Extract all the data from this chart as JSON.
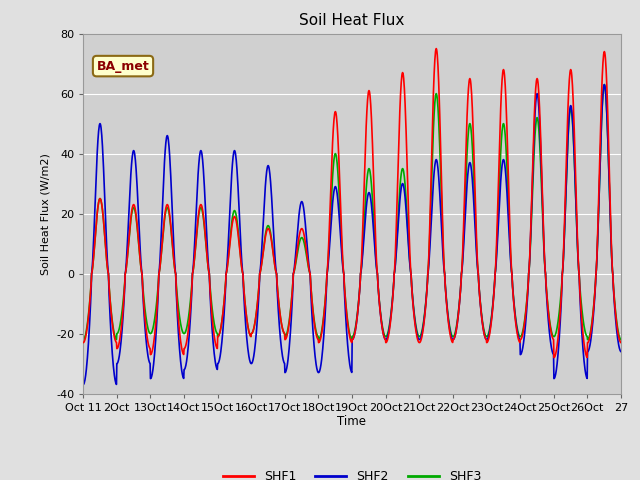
{
  "title": "Soil Heat Flux",
  "ylabel": "Soil Heat Flux (W/m2)",
  "xlabel": "Time",
  "annotation": "BA_met",
  "ylim": [
    -40,
    80
  ],
  "yticks": [
    -40,
    -20,
    0,
    20,
    40,
    60,
    80
  ],
  "xtick_labels": [
    "Oct 11",
    "2Oct",
    "13Oct",
    "14Oct",
    "15Oct",
    "16Oct",
    "17Oct",
    "18Oct",
    "19Oct",
    "20Oct",
    "21Oct",
    "22Oct",
    "23Oct",
    "24Oct",
    "25Oct",
    "26Oct",
    "27"
  ],
  "fig_bg_color": "#e0e0e0",
  "plot_bg_color": "#d0d0d0",
  "legend_entries": [
    "SHF1",
    "SHF2",
    "SHF3"
  ],
  "series_colors": [
    "#ff0000",
    "#0000cc",
    "#00aa00"
  ],
  "series_linewidths": [
    1.2,
    1.2,
    1.2
  ],
  "n_days": 16,
  "day_peaks_shf1": [
    25,
    23,
    23,
    23,
    19,
    15,
    15,
    54,
    61,
    67,
    75,
    65,
    68,
    65,
    68,
    74
  ],
  "day_peaks_shf2": [
    50,
    41,
    46,
    41,
    41,
    36,
    24,
    29,
    27,
    30,
    38,
    37,
    38,
    60,
    56,
    63
  ],
  "day_peaks_shf3": [
    25,
    22,
    22,
    22,
    21,
    16,
    12,
    40,
    35,
    35,
    60,
    50,
    50,
    52,
    55,
    63
  ],
  "night_mins_shf1": [
    23,
    25,
    27,
    25,
    21,
    20,
    22,
    23,
    22,
    23,
    23,
    22,
    23,
    22,
    28,
    23
  ],
  "night_mins_shf2": [
    37,
    30,
    35,
    32,
    30,
    30,
    33,
    33,
    22,
    22,
    22,
    22,
    22,
    27,
    35,
    26
  ],
  "night_mins_shf3": [
    22,
    20,
    20,
    20,
    21,
    20,
    21,
    22,
    21,
    21,
    21,
    21,
    21,
    21,
    21,
    22
  ]
}
